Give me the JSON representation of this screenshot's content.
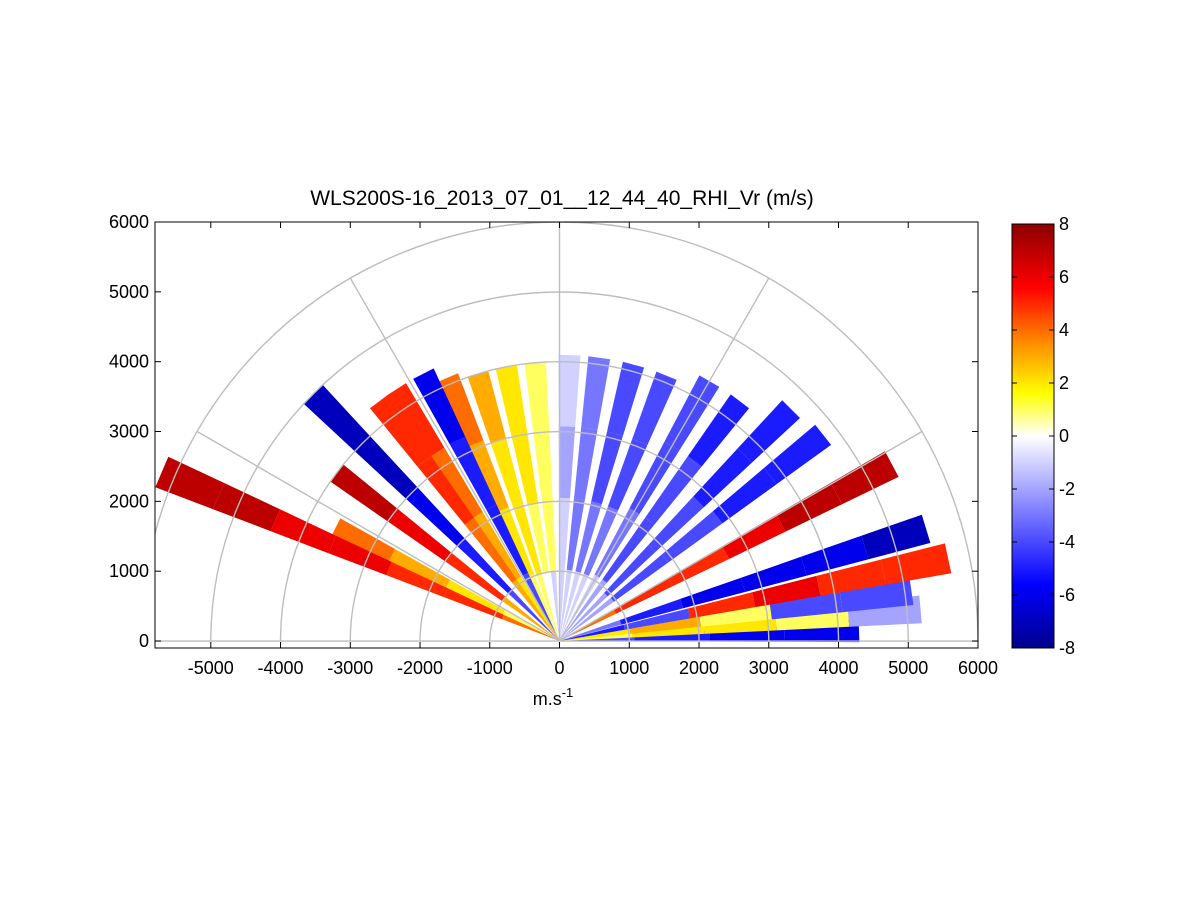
{
  "chart_data": {
    "type": "heatmap",
    "subtype": "polar RHI scan (sector plot)",
    "title": "WLS200S-16_2013_07_01__12_44_40_RHI_Vr (m/s)",
    "xlabel": "m.s",
    "xlabel_superscript": "-1",
    "ylabel": "",
    "xlim": [
      -5800,
      6000
    ],
    "ylim": [
      -100,
      6000
    ],
    "xticks": [
      "-5000",
      "-4000",
      "-3000",
      "-2000",
      "-1000",
      "0",
      "1000",
      "2000",
      "3000",
      "4000",
      "5000",
      "6000"
    ],
    "yticks": [
      "0",
      "1000",
      "2000",
      "3000",
      "4000",
      "5000",
      "6000"
    ],
    "grid": "polar (range rings every 1000, spokes every 30 deg)",
    "colorbar": {
      "range": [
        -8,
        8
      ],
      "ticks": [
        "8",
        "6",
        "4",
        "2",
        "0",
        "-2",
        "-4",
        "-6",
        "-8"
      ],
      "stops": [
        "#00008c",
        "#0000ff",
        "#ffffff",
        "#ffff00",
        "#ff8c00",
        "#ff0000",
        "#8c0000"
      ]
    },
    "beams": [
      {
        "angle_deg": 2,
        "range_m": 4300,
        "vr": [
          -4,
          -5,
          -6,
          -6
        ]
      },
      {
        "angle_deg": 5,
        "range_m": 5200,
        "vr": [
          1,
          2,
          2,
          1,
          -2
        ]
      },
      {
        "angle_deg": 8,
        "range_m": 5100,
        "vr": [
          2,
          3,
          1,
          -4,
          -4
        ]
      },
      {
        "angle_deg": 12,
        "range_m": 5700,
        "vr": [
          -5,
          -4,
          5,
          6,
          5,
          5
        ]
      },
      {
        "angle_deg": 17,
        "range_m": 5500,
        "vr": [
          -3,
          -5,
          -6,
          -6,
          -6,
          -7
        ]
      },
      {
        "angle_deg": 28,
        "range_m": 5400,
        "vr": [
          4,
          5,
          5,
          6,
          7,
          7
        ]
      },
      {
        "angle_deg": 38,
        "range_m": 4800,
        "vr": [
          -2,
          -4,
          -4,
          -5,
          -5
        ]
      },
      {
        "angle_deg": 45,
        "range_m": 4700,
        "vr": [
          -2,
          -4,
          -4,
          -5,
          -5
        ]
      },
      {
        "angle_deg": 53,
        "range_m": 4300,
        "vr": [
          -2,
          -4,
          -4,
          -5
        ]
      },
      {
        "angle_deg": 60,
        "range_m": 4300,
        "vr": [
          -1,
          -3,
          -4,
          -4
        ]
      },
      {
        "angle_deg": 68,
        "range_m": 4100,
        "vr": [
          -1,
          -3,
          -4,
          -4
        ]
      },
      {
        "angle_deg": 75,
        "range_m": 4100,
        "vr": [
          -1,
          -3,
          -4,
          -4
        ]
      },
      {
        "angle_deg": 82,
        "range_m": 4100,
        "vr": [
          -1,
          -3,
          -3,
          -3
        ]
      },
      {
        "angle_deg": 88,
        "range_m": 4100,
        "vr": [
          -1,
          -1,
          -2,
          -1
        ]
      },
      {
        "angle_deg": 95,
        "range_m": 4000,
        "vr": [
          -1,
          1,
          1,
          1
        ]
      },
      {
        "angle_deg": 101,
        "range_m": 4000,
        "vr": [
          0,
          1,
          2,
          2
        ]
      },
      {
        "angle_deg": 107,
        "range_m": 4000,
        "vr": [
          1,
          2,
          2,
          3
        ]
      },
      {
        "angle_deg": 113,
        "range_m": 4100,
        "vr": [
          1,
          2,
          3,
          4
        ]
      },
      {
        "angle_deg": 117,
        "range_m": 4300,
        "vr": [
          -4,
          -5,
          -5,
          -6
        ]
      },
      {
        "angle_deg": 123,
        "range_m": 4300,
        "vr": [
          2,
          3,
          4,
          5
        ]
      },
      {
        "angle_deg": 127,
        "range_m": 4300,
        "vr": [
          3,
          4,
          5,
          5
        ]
      },
      {
        "angle_deg": 135,
        "range_m": 5000,
        "vr": [
          -4,
          -5,
          -6,
          -7,
          -7
        ]
      },
      {
        "angle_deg": 143,
        "range_m": 4000,
        "vr": [
          3,
          5,
          6,
          7
        ]
      },
      {
        "angle_deg": 153,
        "range_m": 3600,
        "vr": [
          1,
          2,
          3,
          4
        ]
      },
      {
        "angle_deg": 157,
        "range_m": 6200,
        "vr": [
          4,
          5,
          5,
          6,
          6,
          7,
          7
        ]
      }
    ]
  }
}
